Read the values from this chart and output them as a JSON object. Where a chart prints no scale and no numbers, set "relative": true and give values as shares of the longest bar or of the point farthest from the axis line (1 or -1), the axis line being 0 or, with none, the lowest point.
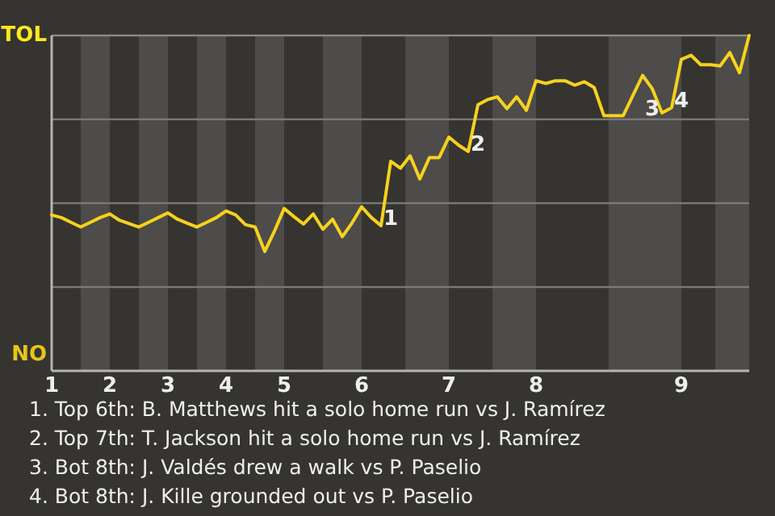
{
  "chart_data": {
    "type": "line",
    "relative": true,
    "categories": [
      "1",
      null,
      null,
      null,
      null,
      null,
      "2",
      null,
      null,
      null,
      null,
      null,
      "3",
      null,
      null,
      null,
      null,
      null,
      "4",
      null,
      null,
      null,
      null,
      null,
      "5",
      null,
      null,
      null,
      null,
      null,
      null,
      null,
      "6",
      null,
      null,
      null,
      null,
      null,
      null,
      null,
      null,
      "7",
      null,
      null,
      null,
      null,
      null,
      null,
      null,
      null,
      "8",
      null,
      null,
      null,
      null,
      null,
      null,
      null,
      null,
      null,
      null,
      null,
      null,
      null,
      null,
      "9",
      null,
      null,
      null,
      null,
      null,
      null,
      null
    ],
    "marker": "none",
    "line_style": "solid",
    "series": [
      {
        "color": "#f7d21c",
        "values": [
          0.465,
          0.457,
          0.443,
          0.429,
          0.443,
          0.457,
          0.468,
          0.449,
          0.439,
          0.429,
          0.443,
          0.457,
          0.471,
          0.452,
          0.44,
          0.429,
          0.443,
          0.457,
          0.477,
          0.465,
          0.436,
          0.429,
          0.356,
          0.417,
          0.484,
          0.46,
          0.438,
          0.468,
          0.422,
          0.452,
          0.4,
          0.441,
          0.489,
          0.457,
          0.433,
          0.625,
          0.604,
          0.641,
          0.572,
          0.636,
          0.636,
          0.697,
          0.673,
          0.654,
          0.793,
          0.809,
          0.817,
          0.782,
          0.817,
          0.777,
          0.865,
          0.857,
          0.865,
          0.865,
          0.852,
          0.862,
          0.845,
          0.761,
          0.761,
          0.761,
          0.821,
          0.881,
          0.841,
          0.769,
          0.785,
          0.929,
          0.941,
          0.913,
          0.913,
          0.909,
          0.949,
          0.889,
          1
        ]
      }
    ],
    "annotations": [
      "TOL",
      "NO",
      {
        "text": "1",
        "y": 0.433
      },
      {
        "text": "2",
        "y": 0.654
      },
      {
        "text": "3",
        "y": 0.769
      },
      {
        "text": "4",
        "y": 0.785
      },
      "1. Top 6th: B. Matthews hit a solo home run vs J. Ramírez",
      "2. Top 7th: T. Jackson hit a solo home run vs J. Ramírez",
      "3. Bot 8th: J. Valdés drew a walk vs P. Paselio",
      "4. Bot 8th: J. Kille grounded out vs P. Paselio"
    ]
  }
}
